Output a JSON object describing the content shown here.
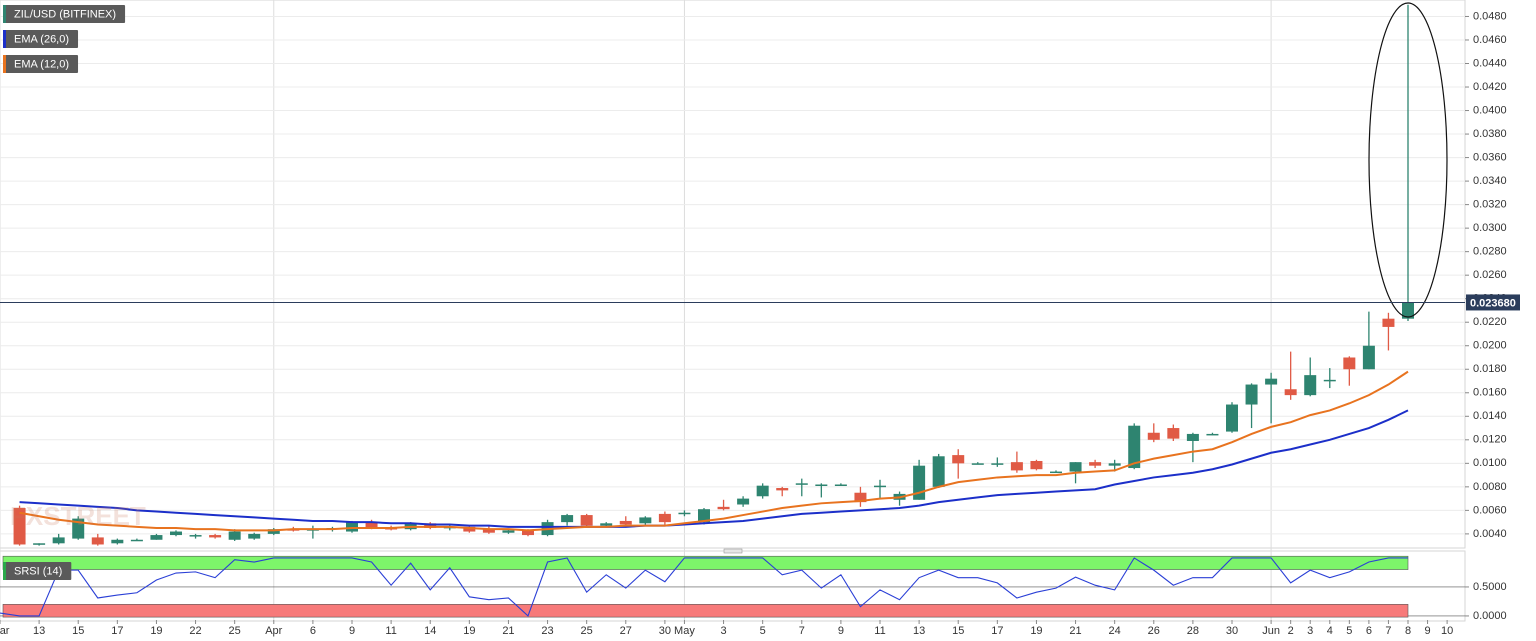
{
  "chart_data": [
    {
      "type": "candlestick",
      "watermark": "FXSTREET",
      "categories": [
        "Mar",
        null,
        "13",
        null,
        "15",
        null,
        "17",
        null,
        "19",
        null,
        "22",
        null,
        "25",
        null,
        "Apr",
        null,
        "6",
        null,
        "9",
        null,
        "11",
        null,
        "14",
        null,
        "19",
        null,
        "21",
        null,
        "23",
        null,
        "25",
        null,
        "27",
        null,
        "30",
        "May",
        null,
        "3",
        null,
        "5",
        null,
        "7",
        null,
        "9",
        null,
        "11",
        null,
        "13",
        null,
        "15",
        null,
        "17",
        null,
        "19",
        null,
        "21",
        null,
        "24",
        null,
        "26",
        null,
        "28",
        null,
        "30",
        null,
        "Jun",
        "2",
        "3",
        "4",
        "5",
        "6",
        "7",
        "8",
        "9",
        "10"
      ],
      "ylim": [
        0.0028,
        0.0494
      ],
      "yticks": [
        {
          "value": 0.004,
          "label": "0.0040"
        },
        {
          "value": 0.006,
          "label": "0.0060"
        },
        {
          "value": 0.008,
          "label": "0.0080"
        },
        {
          "value": 0.01,
          "label": "0.0100"
        },
        {
          "value": 0.012,
          "label": "0.0120"
        },
        {
          "value": 0.014,
          "label": "0.0140"
        },
        {
          "value": 0.016,
          "label": "0.0160"
        },
        {
          "value": 0.018,
          "label": "0.0180"
        },
        {
          "value": 0.02,
          "label": "0.0200"
        },
        {
          "value": 0.022,
          "label": "0.0220"
        },
        {
          "value": 0.024,
          "label": "0.0240"
        },
        {
          "value": 0.026,
          "label": "0.0260"
        },
        {
          "value": 0.028,
          "label": "0.0280"
        },
        {
          "value": 0.03,
          "label": "0.0300"
        },
        {
          "value": 0.032,
          "label": "0.0320"
        },
        {
          "value": 0.034,
          "label": "0.0340"
        },
        {
          "value": 0.036,
          "label": "0.0360"
        },
        {
          "value": 0.038,
          "label": "0.0380"
        },
        {
          "value": 0.04,
          "label": "0.0400"
        },
        {
          "value": 0.042,
          "label": "0.0420"
        },
        {
          "value": 0.044,
          "label": "0.0440"
        },
        {
          "value": 0.046,
          "label": "0.0460"
        },
        {
          "value": 0.048,
          "label": "0.0480"
        }
      ],
      "grid": true,
      "last_price": {
        "value": 0.02368,
        "label": "0.023680",
        "color": "#2b3d5c"
      },
      "series": [
        {
          "name": "ZIL/USD (BITFINEX)",
          "type": "candlestick",
          "color_up": "#2e8470",
          "color_down": "#e05a45",
          "open": [
            null,
            0.0062,
            0.0031,
            0.0032,
            0.0036,
            0.0037,
            0.0032,
            0.0035,
            0.0035,
            0.0039,
            0.0038,
            0.0039,
            0.0035,
            0.0036,
            0.004,
            0.0044,
            0.0043,
            0.0044,
            0.0042,
            0.005,
            0.0045,
            0.0044,
            0.0049,
            0.0045,
            0.0046,
            0.0044,
            0.0041,
            0.0043,
            0.0039,
            0.005,
            0.0056,
            0.0047,
            0.0051,
            0.0049,
            0.0057,
            0.0057,
            0.005,
            0.0063,
            0.0065,
            0.0072,
            0.0079,
            0.0082,
            0.0081,
            0.0082,
            0.0075,
            0.008,
            0.0069,
            0.0069,
            0.008,
            0.0107,
            0.01,
            0.01,
            0.0101,
            0.0102,
            0.0093,
            0.0093,
            0.0101,
            0.0098,
            0.0096,
            0.0126,
            0.013,
            0.0119,
            0.0125,
            0.0127,
            0.015,
            0.0167,
            0.0163,
            0.0158,
            0.017,
            0.019,
            0.018,
            0.0223,
            0.0223,
            null,
            null
          ],
          "high": [
            null,
            0.0064,
            0.0032,
            0.004,
            0.0055,
            0.004,
            0.0036,
            0.0036,
            0.004,
            0.0043,
            0.004,
            0.004,
            0.0044,
            0.0041,
            0.0045,
            0.0046,
            0.0047,
            0.0046,
            0.0051,
            0.0052,
            0.0047,
            0.005,
            0.005,
            0.0048,
            0.0047,
            0.0047,
            0.0044,
            0.0044,
            0.0052,
            0.0057,
            0.0057,
            0.005,
            0.0055,
            0.0055,
            0.0059,
            0.006,
            0.0062,
            0.0069,
            0.0072,
            0.0083,
            0.008,
            0.0087,
            0.0083,
            0.0083,
            0.008,
            0.0086,
            0.0076,
            0.0103,
            0.0108,
            0.0112,
            0.0101,
            0.0105,
            0.011,
            0.0103,
            0.0094,
            0.0101,
            0.0103,
            0.0103,
            0.0134,
            0.0134,
            0.0133,
            0.0126,
            0.0126,
            0.0152,
            0.0168,
            0.0177,
            0.0195,
            0.019,
            0.0181,
            0.0191,
            0.0229,
            0.0228,
            0.049,
            null,
            null
          ],
          "low": [
            null,
            0.003,
            0.003,
            0.0031,
            0.0035,
            0.003,
            0.0031,
            0.0034,
            0.0035,
            0.0038,
            0.0036,
            0.0036,
            0.0034,
            0.0035,
            0.0039,
            0.0042,
            0.0036,
            0.0042,
            0.0041,
            0.0044,
            0.0043,
            0.0043,
            0.0044,
            0.0043,
            0.0041,
            0.004,
            0.004,
            0.0038,
            0.0038,
            0.0047,
            0.0046,
            0.0046,
            0.0046,
            0.0048,
            0.0048,
            0.0055,
            0.0048,
            0.006,
            0.0063,
            0.007,
            0.0072,
            0.0072,
            0.0071,
            0.0081,
            0.0063,
            0.007,
            0.0064,
            0.0069,
            0.0079,
            0.0087,
            0.0099,
            0.0097,
            0.0092,
            0.0094,
            0.0092,
            0.0083,
            0.0096,
            0.0093,
            0.0095,
            0.0118,
            0.0119,
            0.0101,
            0.0124,
            0.0126,
            0.013,
            0.0134,
            0.0154,
            0.0157,
            0.0164,
            0.0166,
            0.018,
            0.0196,
            0.0221,
            null,
            null
          ],
          "close": [
            null,
            0.0031,
            0.0032,
            0.0037,
            0.0053,
            0.0031,
            0.0035,
            0.0035,
            0.0039,
            0.0042,
            0.0039,
            0.0037,
            0.0042,
            0.004,
            0.0044,
            0.0043,
            0.0044,
            0.0045,
            0.005,
            0.0045,
            0.0044,
            0.0049,
            0.0045,
            0.0046,
            0.0042,
            0.0041,
            0.0043,
            0.0039,
            0.005,
            0.0056,
            0.0047,
            0.0049,
            0.0048,
            0.0054,
            0.005,
            0.0058,
            0.0061,
            0.0061,
            0.007,
            0.0081,
            0.0077,
            0.0083,
            0.0082,
            0.0082,
            0.0067,
            0.0081,
            0.0074,
            0.0098,
            0.0106,
            0.01,
            0.01,
            0.01,
            0.0094,
            0.0095,
            0.0093,
            0.0101,
            0.0098,
            0.01,
            0.0132,
            0.012,
            0.0121,
            0.0125,
            0.0125,
            0.015,
            0.0167,
            0.0172,
            0.0158,
            0.0175,
            0.0171,
            0.018,
            0.02,
            0.0216,
            0.0237,
            null,
            null
          ]
        },
        {
          "name": "EMA (26,0)",
          "type": "line",
          "color": "#1c2fc9",
          "values": [
            null,
            0.0067,
            0.0066,
            0.0065,
            0.0064,
            0.0063,
            0.0062,
            0.006,
            0.0059,
            0.0058,
            0.0057,
            0.0056,
            0.0055,
            0.0054,
            0.0053,
            0.0052,
            0.0051,
            0.0051,
            0.005,
            0.005,
            0.0049,
            0.0049,
            0.0048,
            0.0048,
            0.0047,
            0.0047,
            0.0046,
            0.0046,
            0.0046,
            0.0046,
            0.0046,
            0.0046,
            0.0046,
            0.0047,
            0.0047,
            0.0048,
            0.0049,
            0.005,
            0.0051,
            0.0053,
            0.0055,
            0.0057,
            0.0058,
            0.0059,
            0.006,
            0.0061,
            0.0062,
            0.0064,
            0.0067,
            0.0069,
            0.0071,
            0.0073,
            0.0074,
            0.0075,
            0.0076,
            0.0077,
            0.0078,
            0.0082,
            0.0085,
            0.0088,
            0.009,
            0.0092,
            0.0095,
            0.0099,
            0.0104,
            0.0109,
            0.0112,
            0.0116,
            0.012,
            0.0125,
            0.013,
            0.0137,
            0.0145,
            null,
            null
          ]
        },
        {
          "name": "EMA (12,0)",
          "type": "line",
          "color": "#e8731f",
          "values": [
            null,
            0.0058,
            0.0055,
            0.0052,
            0.005,
            0.0048,
            0.0047,
            0.0046,
            0.0045,
            0.0045,
            0.0044,
            0.0044,
            0.0043,
            0.0043,
            0.0043,
            0.0044,
            0.0044,
            0.0044,
            0.0045,
            0.0045,
            0.0045,
            0.0046,
            0.0046,
            0.0046,
            0.0045,
            0.0044,
            0.0044,
            0.0043,
            0.0044,
            0.0045,
            0.0046,
            0.0046,
            0.0047,
            0.0047,
            0.0047,
            0.0049,
            0.0051,
            0.0053,
            0.0056,
            0.0059,
            0.0062,
            0.0064,
            0.0066,
            0.0067,
            0.0068,
            0.007,
            0.0071,
            0.0075,
            0.008,
            0.0084,
            0.0086,
            0.0088,
            0.0089,
            0.009,
            0.009,
            0.0092,
            0.0093,
            0.0094,
            0.01,
            0.0104,
            0.0107,
            0.011,
            0.0112,
            0.0118,
            0.0125,
            0.0131,
            0.0135,
            0.0141,
            0.0145,
            0.0151,
            0.0158,
            0.0167,
            0.0178,
            null,
            null
          ]
        }
      ]
    },
    {
      "type": "line",
      "ylim": [
        -0.07,
        1.12
      ],
      "yticks": [
        {
          "value": 0,
          "label": "0.0000"
        },
        {
          "value": 0.5,
          "label": "0.5000"
        }
      ],
      "bands": [
        {
          "from": 0.8,
          "to": 1.03,
          "color": "#7df56a"
        },
        {
          "from": -0.02,
          "to": 0.2,
          "color": "#f77a7a"
        }
      ],
      "series": [
        {
          "name": "SRSI (14)",
          "type": "line",
          "color": "#2a3fd6",
          "values": [
            0.05,
            0.0,
            0.0,
            0.79,
            0.79,
            0.31,
            0.36,
            0.4,
            0.62,
            0.74,
            0.76,
            0.66,
            0.97,
            0.93,
            1.0,
            1.0,
            1.0,
            1.0,
            1.0,
            0.93,
            0.53,
            0.91,
            0.45,
            0.83,
            0.33,
            0.28,
            0.31,
            0.0,
            0.93,
            1.0,
            0.41,
            0.71,
            0.48,
            0.79,
            0.59,
            1.0,
            1.0,
            1.0,
            1.0,
            1.0,
            0.71,
            0.79,
            0.48,
            0.71,
            0.16,
            0.45,
            0.28,
            0.66,
            0.79,
            0.66,
            0.66,
            0.57,
            0.31,
            0.41,
            0.48,
            0.67,
            0.53,
            0.45,
            1.0,
            0.79,
            0.53,
            0.66,
            0.66,
            1.0,
            1.0,
            1.0,
            0.57,
            0.79,
            0.66,
            0.76,
            0.93,
            1.0,
            1.0,
            null,
            null
          ]
        }
      ]
    }
  ]
}
